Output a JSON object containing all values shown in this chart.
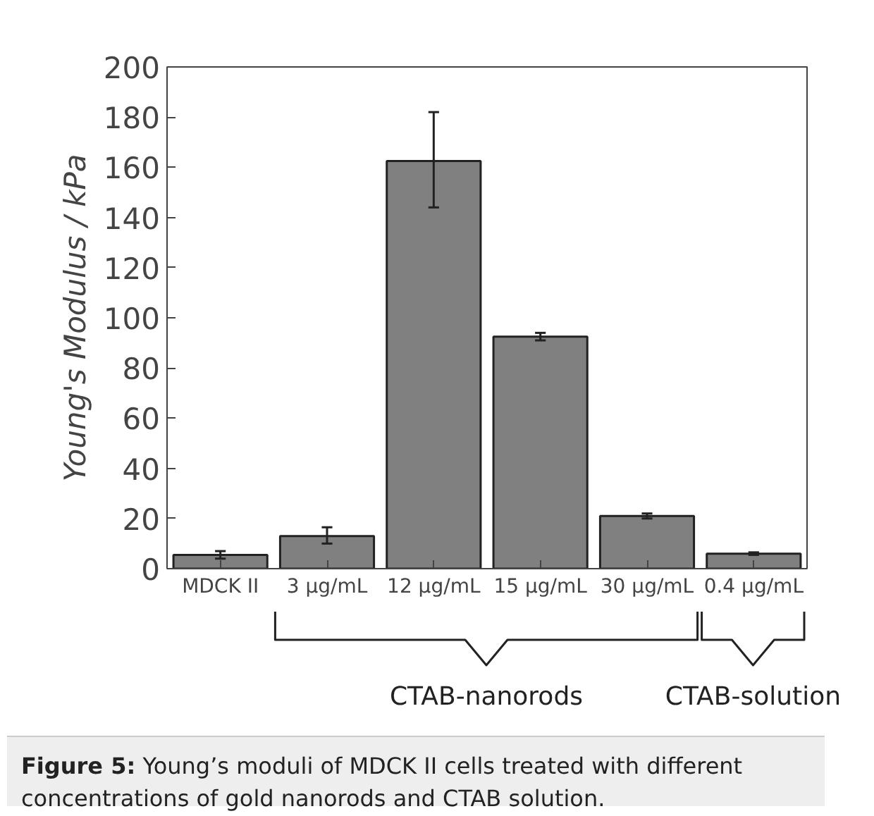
{
  "chart_data": {
    "type": "bar",
    "ylabel": "Young's Modulus / kPa",
    "categories": [
      "MDCK II",
      "3 µg/mL",
      "12 µg/mL",
      "15 µg/mL",
      "30 µg/mL",
      "0.4 µg/mL"
    ],
    "values": [
      5.5,
      13,
      162.5,
      92.5,
      21,
      6
    ],
    "errors": [
      1.5,
      [
        10,
        16.5
      ],
      [
        144,
        182
      ],
      1.5,
      1,
      0.5
    ],
    "color": "#808080",
    "ylim": [
      0,
      200
    ],
    "yticks": [
      0,
      20,
      40,
      60,
      80,
      100,
      120,
      140,
      160,
      180,
      200
    ],
    "annotations": [
      "CTAB-nanorods",
      "CTAB-solution",
      "Figure 5: Young’s moduli of MDCK II cells treated with different concentrations of gold nanorods and CTAB solution."
    ]
  }
}
